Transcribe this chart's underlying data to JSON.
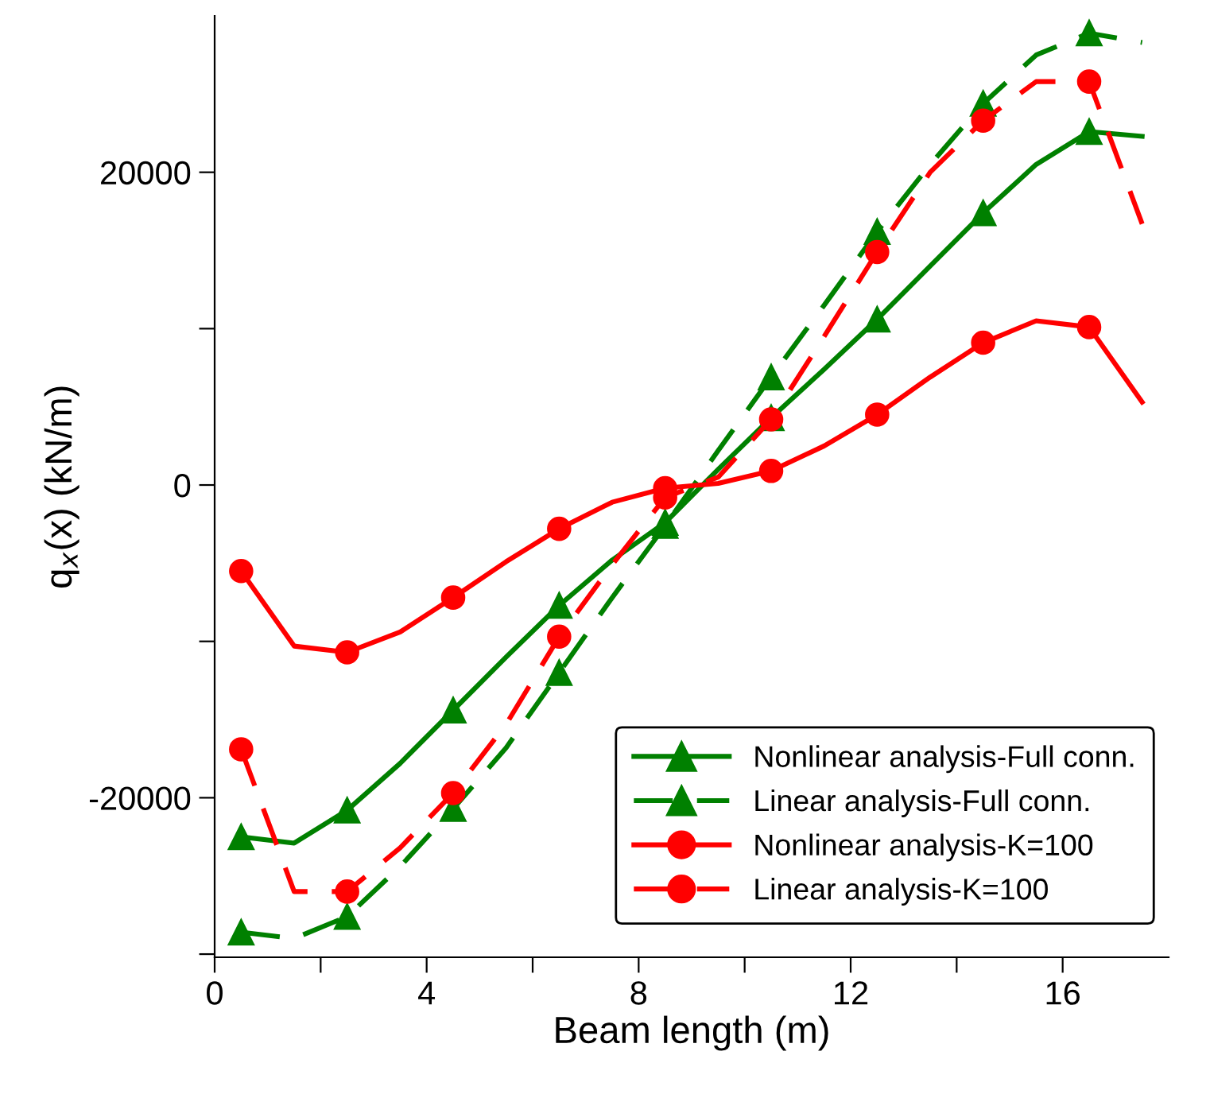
{
  "chart_data": {
    "type": "line",
    "xlabel": "Beam length (m)",
    "ylabel": "q$_{x}$(x) (kN/m)",
    "x": [
      0.5,
      1.5,
      2.5,
      3.5,
      4.5,
      5.5,
      6.5,
      7.5,
      8.5,
      9.5,
      10.5,
      11.5,
      12.5,
      13.5,
      14.5,
      15.5,
      16.5,
      17.5
    ],
    "xlim": [
      0,
      18
    ],
    "ylim": [
      -30200,
      30000
    ],
    "xticks": [
      0,
      {
        "value": 2,
        "label": null
      },
      4,
      {
        "value": 6,
        "label": null
      },
      8,
      {
        "value": 10,
        "label": null
      },
      12,
      {
        "value": 14,
        "label": null
      },
      16
    ],
    "yticks": [
      {
        "value": -30000,
        "label": null
      },
      -20000,
      {
        "value": -10000,
        "label": null
      },
      0,
      {
        "value": 10000,
        "label": null
      },
      20000
    ],
    "grid": false,
    "legend": "bottom right",
    "series": [
      {
        "name": "Nonlinear analysis-Full conn.",
        "color": "#008000",
        "marker": "triangle",
        "line_style": "solid",
        "values": [
          -22500,
          -22900,
          -20800,
          -17800,
          -14400,
          -11000,
          -7700,
          -4800,
          -2400,
          1000,
          4300,
          7400,
          10600,
          14000,
          17400,
          20500,
          22600,
          22300
        ]
      },
      {
        "name": "Linear analysis-Full conn.",
        "color": "#008000",
        "marker": "triangle",
        "line_style": "dashed",
        "values": [
          -28600,
          -29000,
          -27600,
          -24400,
          -20700,
          -16800,
          -12000,
          -7200,
          -2600,
          2200,
          6900,
          11500,
          16200,
          20500,
          24400,
          27500,
          28900,
          28300
        ]
      },
      {
        "name": "Nonlinear analysis-K=100",
        "color": "#ff0000",
        "marker": "circle",
        "line_style": "solid",
        "values": [
          -5500,
          -10300,
          -10700,
          -9400,
          -7200,
          -4900,
          -2800,
          -1100,
          -200,
          100,
          900,
          2500,
          4500,
          6900,
          9100,
          10500,
          10100,
          5300
        ]
      },
      {
        "name": "Linear analysis-K=100",
        "color": "#ff0000",
        "marker": "circle",
        "line_style": "dashed",
        "values": [
          -16900,
          -26000,
          -26000,
          -23200,
          -19700,
          -15300,
          -9700,
          -5100,
          -800,
          500,
          4200,
          9500,
          14900,
          20000,
          23300,
          25800,
          25800,
          16700
        ]
      }
    ]
  }
}
